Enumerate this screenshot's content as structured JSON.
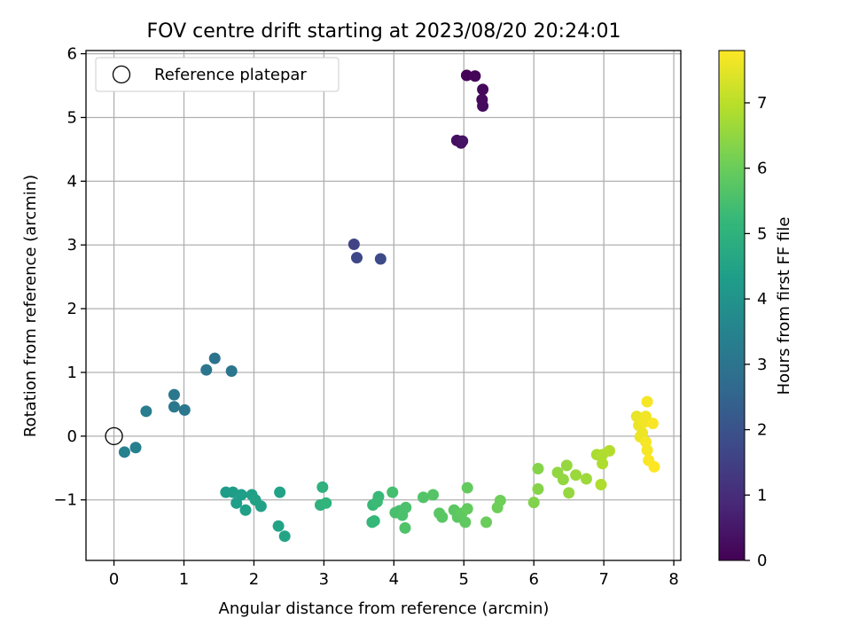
{
  "chart_data": {
    "type": "scatter",
    "title": "FOV centre drift starting at 2023/08/20 20:24:01",
    "xlabel": "Angular distance from reference (arcmin)",
    "ylabel": "Rotation from reference (arcmin)",
    "xlim": [
      -0.4,
      8.1
    ],
    "ylim": [
      -1.95,
      6.05
    ],
    "xticks": [
      0,
      1,
      2,
      3,
      4,
      5,
      6,
      7,
      8
    ],
    "xtick_labels": [
      "0",
      "1",
      "2",
      "3",
      "4",
      "5",
      "6",
      "7",
      "8"
    ],
    "yticks": [
      -1,
      0,
      1,
      2,
      3,
      4,
      5,
      6
    ],
    "ytick_labels": [
      "−1",
      "0",
      "1",
      "2",
      "3",
      "4",
      "5",
      "6"
    ],
    "grid": true,
    "legend": {
      "placement": "upper-left",
      "entries": [
        {
          "label": "Reference platepar",
          "marker": "open-circle"
        }
      ]
    },
    "reference_point": {
      "x": 0,
      "y": 0
    },
    "colorbar": {
      "label": "Hours from first FF file",
      "colormap": "viridis",
      "range": [
        0,
        7.8
      ],
      "ticks": [
        0,
        1,
        2,
        3,
        4,
        5,
        6,
        7
      ],
      "tick_labels": [
        "0",
        "1",
        "2",
        "3",
        "4",
        "5",
        "6",
        "7"
      ],
      "colors": [
        "#440154",
        "#482878",
        "#3e4989",
        "#31688e",
        "#26828e",
        "#1f9e89",
        "#35b779",
        "#6ece58",
        "#b5de2b",
        "#fde725"
      ]
    },
    "points": [
      {
        "x": 5.04,
        "y": 5.66,
        "t": 0.05
      },
      {
        "x": 5.16,
        "y": 5.65,
        "t": 0.1
      },
      {
        "x": 5.27,
        "y": 5.44,
        "t": 0.15
      },
      {
        "x": 5.26,
        "y": 5.28,
        "t": 0.2
      },
      {
        "x": 5.27,
        "y": 5.18,
        "t": 0.25
      },
      {
        "x": 4.9,
        "y": 4.64,
        "t": 0.3
      },
      {
        "x": 4.96,
        "y": 4.6,
        "t": 0.35
      },
      {
        "x": 4.98,
        "y": 4.63,
        "t": 0.4
      },
      {
        "x": 3.43,
        "y": 3.01,
        "t": 1.6
      },
      {
        "x": 3.47,
        "y": 2.8,
        "t": 1.7
      },
      {
        "x": 3.81,
        "y": 2.78,
        "t": 1.8
      },
      {
        "x": 1.44,
        "y": 1.22,
        "t": 3.0
      },
      {
        "x": 1.32,
        "y": 1.04,
        "t": 3.05
      },
      {
        "x": 1.68,
        "y": 1.02,
        "t": 3.05
      },
      {
        "x": 0.86,
        "y": 0.65,
        "t": 3.1
      },
      {
        "x": 0.86,
        "y": 0.46,
        "t": 3.1
      },
      {
        "x": 1.01,
        "y": 0.41,
        "t": 3.1
      },
      {
        "x": 0.46,
        "y": 0.39,
        "t": 3.3
      },
      {
        "x": 0.31,
        "y": -0.18,
        "t": 3.4
      },
      {
        "x": 0.15,
        "y": -0.25,
        "t": 3.4
      },
      {
        "x": 1.6,
        "y": -0.88,
        "t": 4.3
      },
      {
        "x": 1.7,
        "y": -0.88,
        "t": 4.3
      },
      {
        "x": 1.82,
        "y": -0.92,
        "t": 4.35
      },
      {
        "x": 1.75,
        "y": -1.05,
        "t": 4.35
      },
      {
        "x": 1.88,
        "y": -1.16,
        "t": 4.4
      },
      {
        "x": 1.97,
        "y": -0.92,
        "t": 4.4
      },
      {
        "x": 2.02,
        "y": -1.0,
        "t": 4.45
      },
      {
        "x": 2.1,
        "y": -1.1,
        "t": 4.45
      },
      {
        "x": 2.37,
        "y": -0.88,
        "t": 4.5
      },
      {
        "x": 2.35,
        "y": -1.41,
        "t": 4.5
      },
      {
        "x": 2.44,
        "y": -1.57,
        "t": 4.55
      },
      {
        "x": 2.98,
        "y": -0.8,
        "t": 5.0
      },
      {
        "x": 2.95,
        "y": -1.08,
        "t": 5.0
      },
      {
        "x": 3.03,
        "y": -1.05,
        "t": 5.05
      },
      {
        "x": 3.69,
        "y": -1.35,
        "t": 5.2
      },
      {
        "x": 3.72,
        "y": -1.33,
        "t": 5.2
      },
      {
        "x": 3.7,
        "y": -1.08,
        "t": 5.25
      },
      {
        "x": 3.78,
        "y": -0.95,
        "t": 5.25
      },
      {
        "x": 3.76,
        "y": -1.03,
        "t": 5.3
      },
      {
        "x": 3.98,
        "y": -0.88,
        "t": 5.45
      },
      {
        "x": 4.02,
        "y": -1.2,
        "t": 5.5
      },
      {
        "x": 4.08,
        "y": -1.17,
        "t": 5.5
      },
      {
        "x": 4.12,
        "y": -1.24,
        "t": 5.55
      },
      {
        "x": 4.17,
        "y": -1.12,
        "t": 5.55
      },
      {
        "x": 4.16,
        "y": -1.44,
        "t": 5.6
      },
      {
        "x": 4.42,
        "y": -0.96,
        "t": 5.65
      },
      {
        "x": 4.56,
        "y": -0.92,
        "t": 5.7
      },
      {
        "x": 4.65,
        "y": -1.21,
        "t": 5.75
      },
      {
        "x": 4.69,
        "y": -1.27,
        "t": 5.75
      },
      {
        "x": 4.86,
        "y": -1.16,
        "t": 5.8
      },
      {
        "x": 4.91,
        "y": -1.27,
        "t": 5.8
      },
      {
        "x": 4.97,
        "y": -1.21,
        "t": 5.85
      },
      {
        "x": 5.02,
        "y": -1.35,
        "t": 5.85
      },
      {
        "x": 5.05,
        "y": -1.14,
        "t": 5.9
      },
      {
        "x": 5.05,
        "y": -0.81,
        "t": 5.9
      },
      {
        "x": 5.32,
        "y": -1.35,
        "t": 6.0
      },
      {
        "x": 5.48,
        "y": -1.12,
        "t": 6.05
      },
      {
        "x": 5.52,
        "y": -1.01,
        "t": 6.05
      },
      {
        "x": 6.0,
        "y": -1.04,
        "t": 6.3
      },
      {
        "x": 6.06,
        "y": -0.83,
        "t": 6.35
      },
      {
        "x": 6.06,
        "y": -0.51,
        "t": 6.35
      },
      {
        "x": 6.34,
        "y": -0.57,
        "t": 6.5
      },
      {
        "x": 6.42,
        "y": -0.68,
        "t": 6.5
      },
      {
        "x": 6.47,
        "y": -0.46,
        "t": 6.55
      },
      {
        "x": 6.5,
        "y": -0.89,
        "t": 6.55
      },
      {
        "x": 6.6,
        "y": -0.61,
        "t": 6.6
      },
      {
        "x": 6.75,
        "y": -0.67,
        "t": 6.65
      },
      {
        "x": 6.9,
        "y": -0.29,
        "t": 6.8
      },
      {
        "x": 6.98,
        "y": -0.29,
        "t": 6.85
      },
      {
        "x": 6.98,
        "y": -0.43,
        "t": 6.85
      },
      {
        "x": 6.96,
        "y": -0.76,
        "t": 6.85
      },
      {
        "x": 7.08,
        "y": -0.23,
        "t": 6.9
      },
      {
        "x": 7.47,
        "y": 0.31,
        "t": 7.55
      },
      {
        "x": 7.5,
        "y": 0.17,
        "t": 7.6
      },
      {
        "x": 7.52,
        "y": -0.01,
        "t": 7.6
      },
      {
        "x": 7.55,
        "y": 0.05,
        "t": 7.6
      },
      {
        "x": 7.58,
        "y": 0.22,
        "t": 7.65
      },
      {
        "x": 7.6,
        "y": 0.31,
        "t": 7.65
      },
      {
        "x": 7.62,
        "y": 0.54,
        "t": 7.7
      },
      {
        "x": 7.6,
        "y": -0.09,
        "t": 7.7
      },
      {
        "x": 7.62,
        "y": -0.22,
        "t": 7.7
      },
      {
        "x": 7.64,
        "y": -0.38,
        "t": 7.75
      },
      {
        "x": 7.7,
        "y": 0.2,
        "t": 7.75
      },
      {
        "x": 7.72,
        "y": -0.48,
        "t": 7.8
      }
    ]
  }
}
